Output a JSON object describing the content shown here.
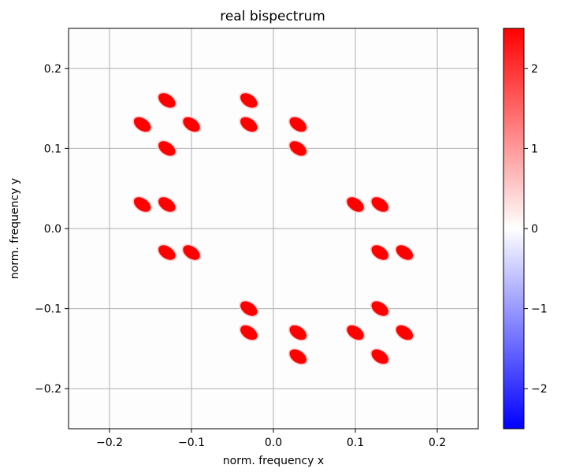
{
  "chart_data": {
    "type": "heatmap",
    "title": "real bispectrum",
    "xlabel": "norm. frequency x",
    "ylabel": "norm. frequency y",
    "xlim": [
      -0.25,
      0.25
    ],
    "ylim": [
      -0.25,
      0.25
    ],
    "grid": true,
    "xticks": [
      "−0.2",
      "−0.1",
      "0.0",
      "0.1",
      "0.2"
    ],
    "xtick_values": [
      -0.2,
      -0.1,
      0.0,
      0.1,
      0.2
    ],
    "yticks": [
      "−0.2",
      "−0.1",
      "0.0",
      "0.1",
      "0.2"
    ],
    "ytick_values": [
      -0.2,
      -0.1,
      0.0,
      0.1,
      0.2
    ],
    "colormap": "bwr",
    "colormap_colors": {
      "low": "#0000ff",
      "mid": "#ffffff",
      "high": "#ff0000"
    },
    "colorbar": {
      "range": [
        -2.5,
        2.5
      ],
      "ticks": [
        "−2",
        "−1",
        "0",
        "1",
        "2"
      ],
      "tick_values": [
        -2,
        -1,
        0,
        1,
        2
      ],
      "placement": "right"
    },
    "background_value": 0,
    "blobs": [
      {
        "x": -0.13,
        "y": 0.16,
        "value": 2.5
      },
      {
        "x": -0.16,
        "y": 0.13,
        "value": 2.5
      },
      {
        "x": -0.1,
        "y": 0.13,
        "value": 2.5
      },
      {
        "x": -0.13,
        "y": 0.1,
        "value": 2.5
      },
      {
        "x": -0.03,
        "y": 0.16,
        "value": 2.5
      },
      {
        "x": -0.03,
        "y": 0.13,
        "value": 2.5
      },
      {
        "x": 0.03,
        "y": 0.13,
        "value": 2.5
      },
      {
        "x": 0.03,
        "y": 0.1,
        "value": 2.5
      },
      {
        "x": -0.16,
        "y": 0.03,
        "value": 2.5
      },
      {
        "x": -0.13,
        "y": 0.03,
        "value": 2.5
      },
      {
        "x": 0.1,
        "y": 0.03,
        "value": 2.5
      },
      {
        "x": 0.13,
        "y": 0.03,
        "value": 2.5
      },
      {
        "x": -0.13,
        "y": -0.03,
        "value": 2.5
      },
      {
        "x": -0.1,
        "y": -0.03,
        "value": 2.5
      },
      {
        "x": 0.13,
        "y": -0.03,
        "value": 2.5
      },
      {
        "x": 0.16,
        "y": -0.03,
        "value": 2.5
      },
      {
        "x": -0.03,
        "y": -0.1,
        "value": 2.5
      },
      {
        "x": -0.03,
        "y": -0.13,
        "value": 2.5
      },
      {
        "x": 0.13,
        "y": -0.1,
        "value": 2.5
      },
      {
        "x": 0.03,
        "y": -0.13,
        "value": 2.5
      },
      {
        "x": 0.03,
        "y": -0.16,
        "value": 2.5
      },
      {
        "x": 0.1,
        "y": -0.13,
        "value": 2.5
      },
      {
        "x": 0.16,
        "y": -0.13,
        "value": 2.5
      },
      {
        "x": 0.13,
        "y": -0.16,
        "value": 2.5
      }
    ]
  }
}
